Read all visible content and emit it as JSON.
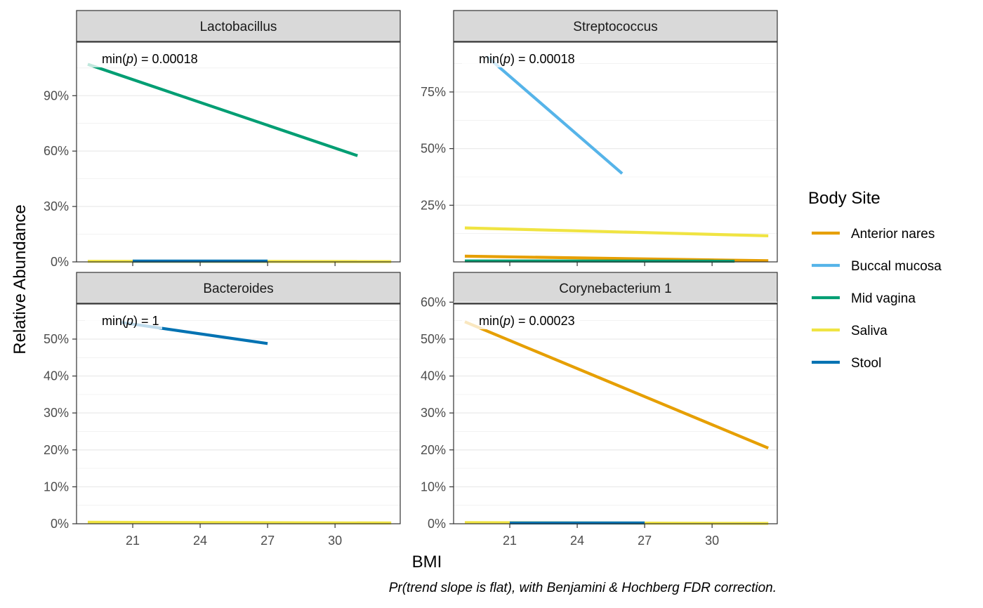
{
  "chart_data": {
    "type": "line",
    "xlabel": "BMI",
    "ylabel": "Relative Abundance",
    "caption": "Pr(trend slope is flat), with Benjamini & Hochberg FDR correction.",
    "x_ticks": [
      21,
      24,
      27,
      30
    ],
    "xlim": [
      18.5,
      32.9
    ],
    "legend": {
      "title": "Body Site",
      "position": "right",
      "entries": [
        {
          "name": "Anterior nares",
          "color": "#E69F00"
        },
        {
          "name": "Buccal mucosa",
          "color": "#56B4E9"
        },
        {
          "name": "Mid vagina",
          "color": "#009E73"
        },
        {
          "name": "Saliva",
          "color": "#F0E442"
        },
        {
          "name": "Stool",
          "color": "#0072B2"
        }
      ]
    },
    "panels": [
      {
        "title": "Lactobacillus",
        "annotation": {
          "prefix": "min(",
          "p": "p",
          "suffix": ") = 0.00018"
        },
        "ylim": [
          0,
          1.19
        ],
        "y_ticks": [
          0,
          0.3,
          0.6,
          0.9
        ],
        "y_tick_labels": [
          "0%",
          "30%",
          "60%",
          "90%"
        ],
        "series": [
          {
            "name": "Mid vagina",
            "x": [
              19,
              31
            ],
            "y": [
              1.07,
              0.575
            ]
          },
          {
            "name": "Saliva",
            "x": [
              19,
              32.5
            ],
            "y": [
              0.003,
              0.002
            ]
          },
          {
            "name": "Stool",
            "x": [
              21,
              27
            ],
            "y": [
              0.004,
              0.004
            ]
          }
        ]
      },
      {
        "title": "Streptococcus",
        "annotation": {
          "prefix": "min(",
          "p": "p",
          "suffix": ") = 0.00018"
        },
        "ylim": [
          0,
          0.97
        ],
        "y_ticks": [
          0.25,
          0.5,
          0.75
        ],
        "y_tick_labels": [
          "25%",
          "50%",
          "75%"
        ],
        "series": [
          {
            "name": "Buccal mucosa",
            "x": [
              20,
              26
            ],
            "y": [
              0.905,
              0.39
            ]
          },
          {
            "name": "Saliva",
            "x": [
              19,
              32.5
            ],
            "y": [
              0.15,
              0.115
            ]
          },
          {
            "name": "Anterior nares",
            "x": [
              19,
              32.5
            ],
            "y": [
              0.025,
              0.005
            ]
          },
          {
            "name": "Mid vagina",
            "x": [
              19,
              31
            ],
            "y": [
              0.004,
              0.003
            ]
          }
        ]
      },
      {
        "title": "Bacteroides",
        "annotation": {
          "prefix": "min(",
          "p": "p",
          "suffix": ") = 1"
        },
        "ylim": [
          0,
          0.595
        ],
        "y_ticks": [
          0,
          0.1,
          0.2,
          0.3,
          0.4,
          0.5
        ],
        "y_tick_labels": [
          "0%",
          "10%",
          "20%",
          "30%",
          "40%",
          "50%"
        ],
        "series": [
          {
            "name": "Stool",
            "x": [
              20.5,
              27
            ],
            "y": [
              0.545,
              0.488
            ]
          },
          {
            "name": "Saliva",
            "x": [
              19,
              32.5
            ],
            "y": [
              0.004,
              0.002
            ]
          }
        ]
      },
      {
        "title": "Corynebacterium 1",
        "annotation": {
          "prefix": "min(",
          "p": "p",
          "suffix": ") = 0.00023"
        },
        "ylim": [
          0,
          0.595
        ],
        "y_ticks": [
          0,
          0.1,
          0.2,
          0.3,
          0.4,
          0.5,
          0.6
        ],
        "y_tick_labels": [
          "0%",
          "10%",
          "20%",
          "30%",
          "40%",
          "50%",
          "60%"
        ],
        "series": [
          {
            "name": "Anterior nares",
            "x": [
              19,
              32.5
            ],
            "y": [
              0.547,
              0.205
            ]
          },
          {
            "name": "Saliva",
            "x": [
              19,
              32.5
            ],
            "y": [
              0.003,
              0.001
            ]
          },
          {
            "name": "Stool",
            "x": [
              21,
              27
            ],
            "y": [
              0.002,
              0.002
            ]
          }
        ]
      }
    ]
  }
}
